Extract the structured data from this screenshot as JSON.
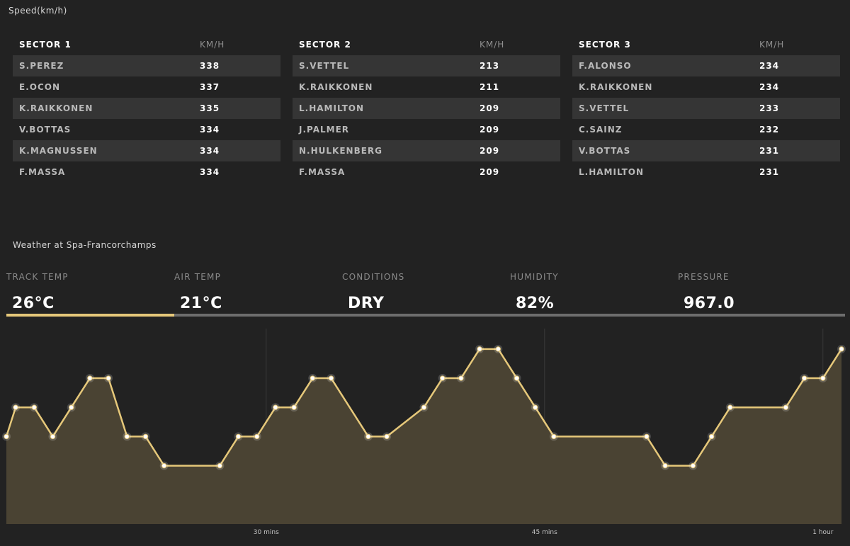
{
  "speed": {
    "title": "Speed(km/h)",
    "unit_label": "KM/H",
    "sectors": [
      {
        "title": "SECTOR 1",
        "rows": [
          {
            "driver": "S.PEREZ",
            "speed": "338"
          },
          {
            "driver": "E.OCON",
            "speed": "337"
          },
          {
            "driver": "K.RAIKKONEN",
            "speed": "335"
          },
          {
            "driver": "V.BOTTAS",
            "speed": "334"
          },
          {
            "driver": "K.MAGNUSSEN",
            "speed": "334"
          },
          {
            "driver": "F.MASSA",
            "speed": "334"
          }
        ]
      },
      {
        "title": "SECTOR 2",
        "rows": [
          {
            "driver": "S.VETTEL",
            "speed": "213"
          },
          {
            "driver": "K.RAIKKONEN",
            "speed": "211"
          },
          {
            "driver": "L.HAMILTON",
            "speed": "209"
          },
          {
            "driver": "J.PALMER",
            "speed": "209"
          },
          {
            "driver": "N.HULKENBERG",
            "speed": "209"
          },
          {
            "driver": "F.MASSA",
            "speed": "209"
          }
        ]
      },
      {
        "title": "SECTOR 3",
        "rows": [
          {
            "driver": "F.ALONSO",
            "speed": "234"
          },
          {
            "driver": "K.RAIKKONEN",
            "speed": "234"
          },
          {
            "driver": "S.VETTEL",
            "speed": "233"
          },
          {
            "driver": "C.SAINZ",
            "speed": "232"
          },
          {
            "driver": "V.BOTTAS",
            "speed": "231"
          },
          {
            "driver": "L.HAMILTON",
            "speed": "231"
          }
        ]
      }
    ]
  },
  "weather": {
    "title": "Weather at Spa-Francorchamps",
    "track_temp": {
      "label": "TRACK TEMP",
      "value": "26°C"
    },
    "air_temp": {
      "label": "AIR TEMP",
      "value": "21°C"
    },
    "conditions": {
      "label": "CONDITIONS",
      "value": "DRY"
    },
    "humidity": {
      "label": "HUMIDITY",
      "value": "82%"
    },
    "pressure": {
      "label": "PRESSURE",
      "value": "967.0"
    },
    "active_tab": "TRACK TEMP"
  },
  "colors": {
    "background": "#222222",
    "accent": "#e6c87a",
    "area_fill": "#4a4333",
    "row_stripe": "#353535"
  },
  "chart_data": {
    "type": "area",
    "x_min": 21,
    "x_max": 66,
    "x": [
      21,
      21.5,
      22.5,
      23.5,
      24.5,
      25.5,
      26.5,
      27.5,
      28.5,
      29.5,
      32.5,
      33.5,
      34.5,
      35.5,
      36.5,
      37.5,
      38.5,
      40.5,
      41.5,
      43.5,
      44.5,
      45.5,
      46.5,
      47.5,
      48.5,
      49.5,
      50.5,
      55.5,
      56.5,
      58,
      59,
      60,
      63,
      64,
      65,
      66
    ],
    "y": [
      3,
      4,
      4,
      3,
      4,
      5,
      5,
      3,
      3,
      2,
      2,
      3,
      3,
      4,
      4,
      5,
      5,
      3,
      3,
      4,
      5,
      5,
      6,
      6,
      5,
      4,
      3,
      3,
      2,
      2,
      3,
      4,
      4,
      5,
      5,
      6
    ],
    "y_min": 0,
    "y_max": 6.7,
    "x_ticks": [
      {
        "value": 35,
        "label": "30 mins"
      },
      {
        "value": 50,
        "label": "45 mins"
      },
      {
        "value": 65,
        "label": "1 hour"
      }
    ]
  }
}
